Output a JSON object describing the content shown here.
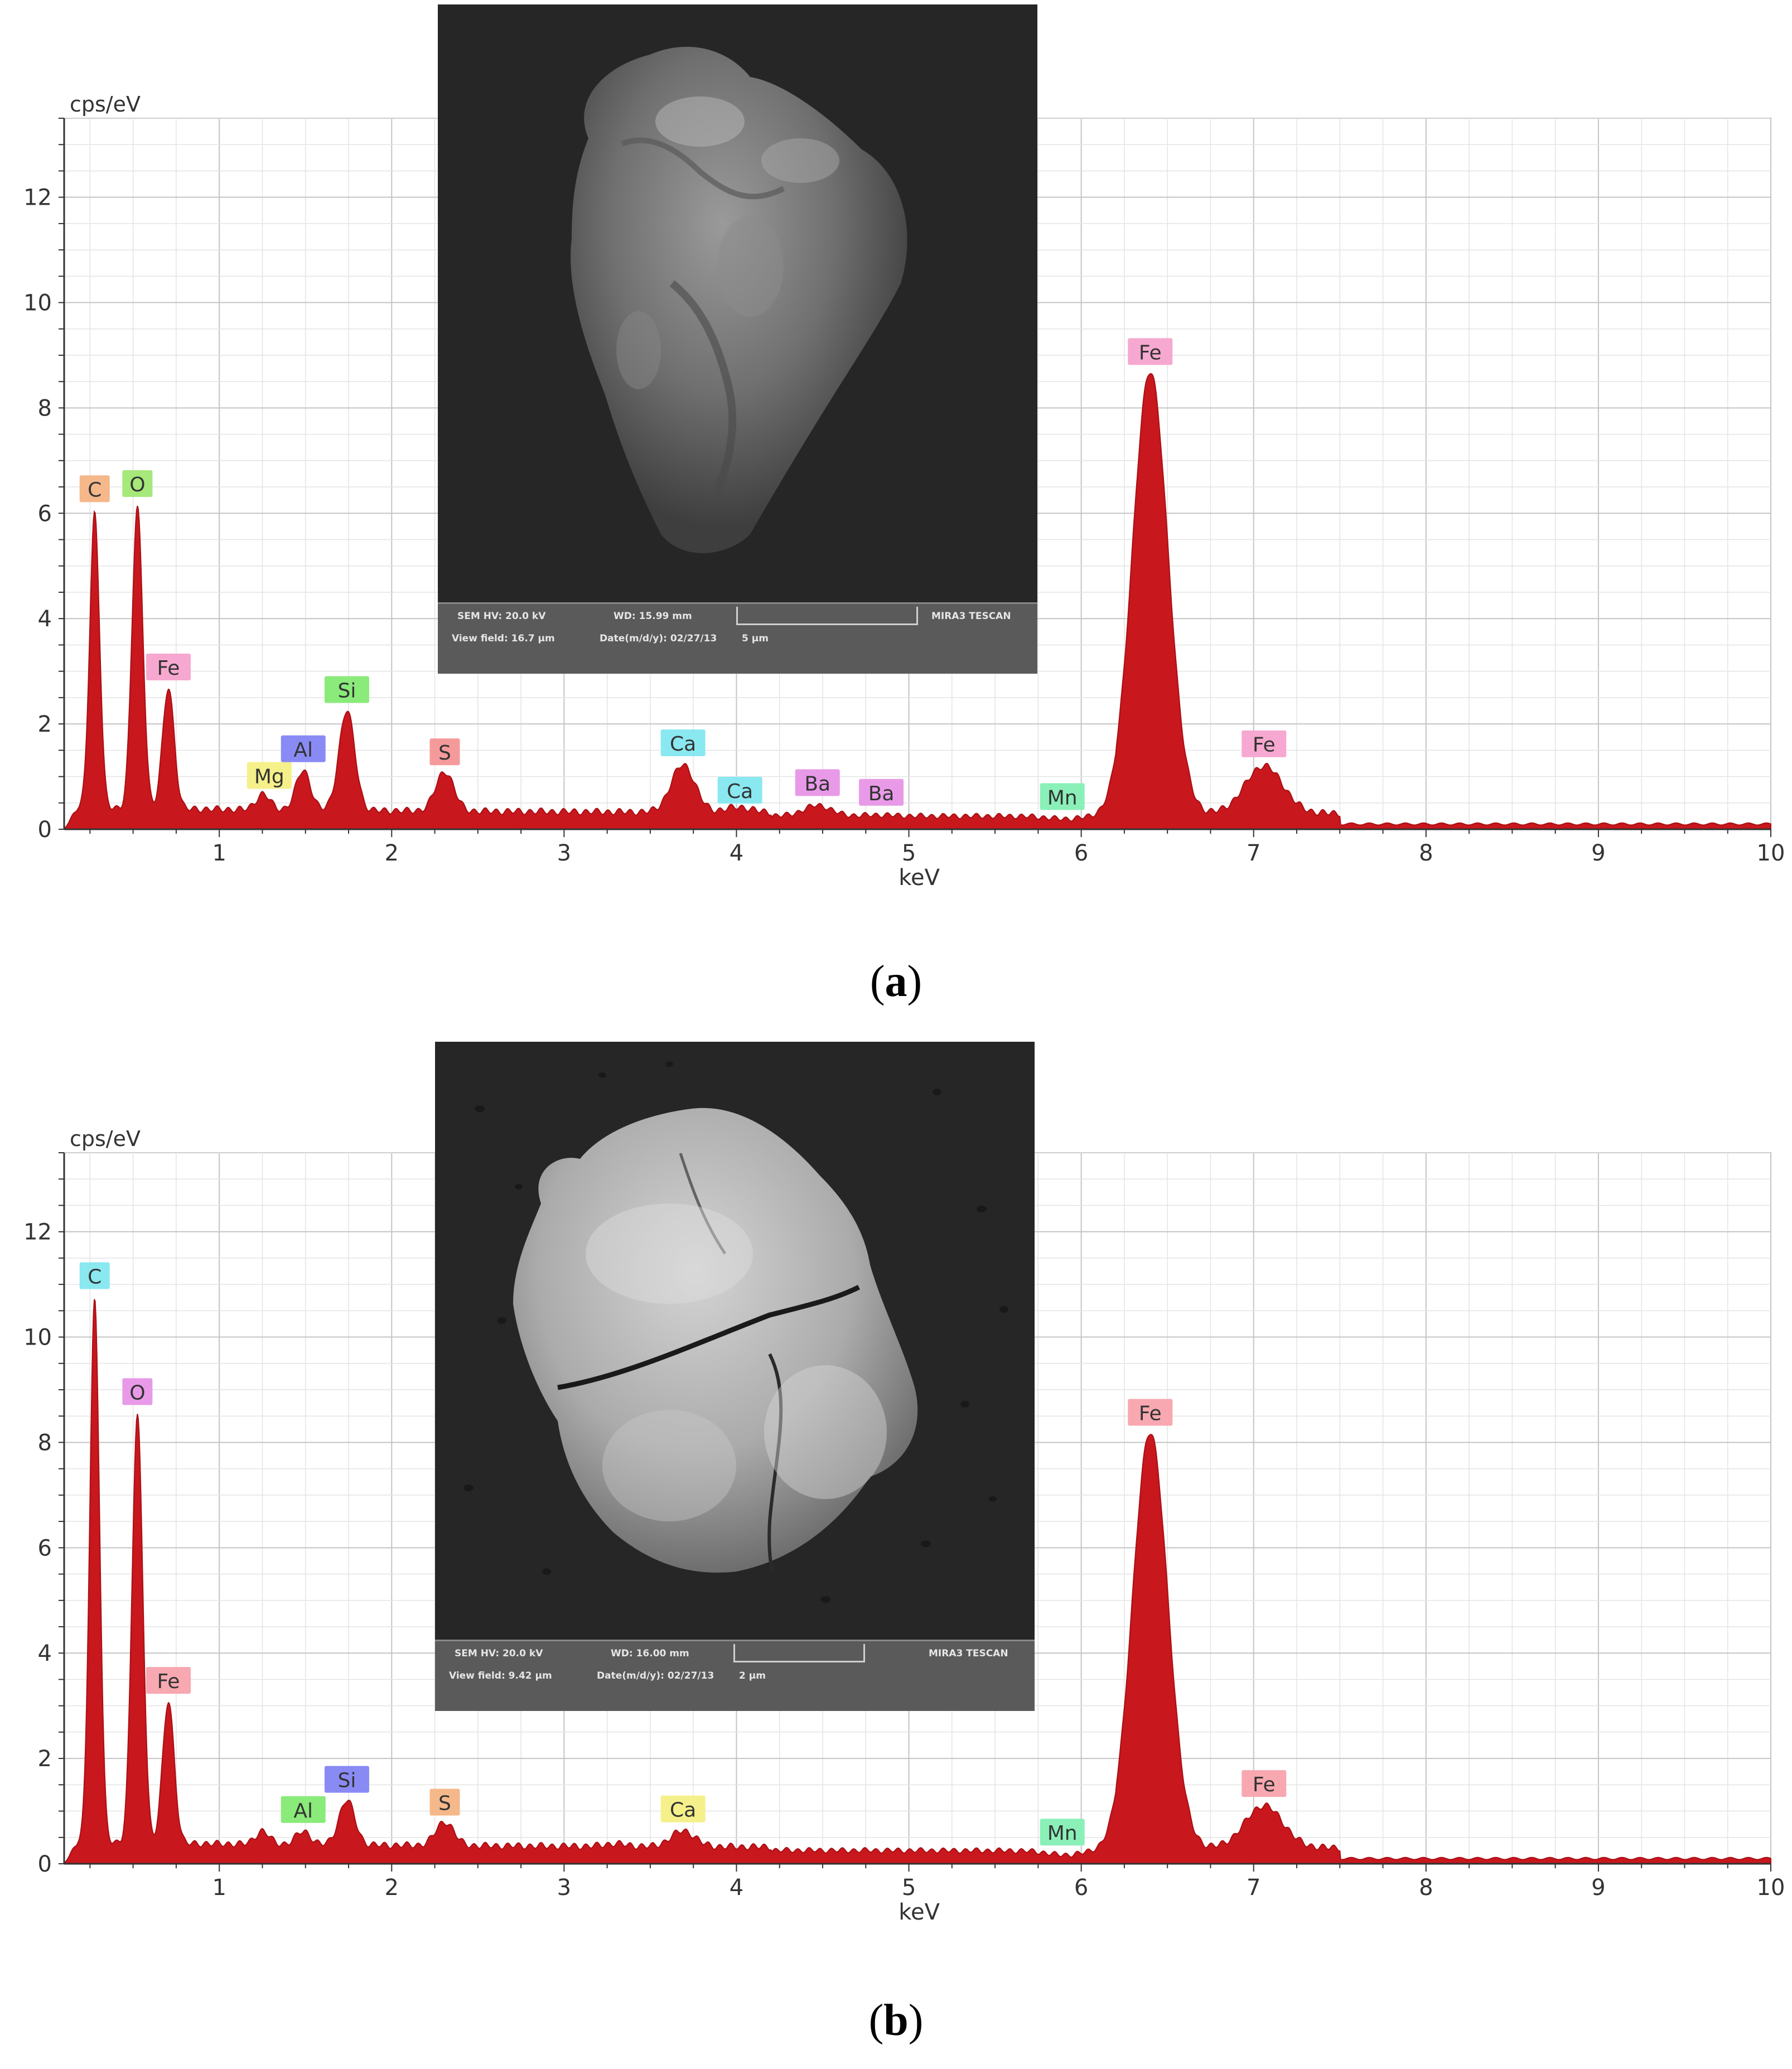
{
  "chart_data": [
    {
      "type": "line",
      "panel_label": "a",
      "ylabel": "cps/eV",
      "xlabel": "keV",
      "xlim": [
        0.1,
        10
      ],
      "ylim": [
        0,
        13.5
      ],
      "x_ticks": [
        1,
        2,
        3,
        4,
        5,
        6,
        7,
        8,
        9,
        10
      ],
      "y_ticks": [
        0,
        2,
        4,
        6,
        8,
        10,
        12
      ],
      "grid": true,
      "fill_color": "#c8171d",
      "baseline": 0.3,
      "peaks": [
        {
          "x": 0.277,
          "y": 5.9,
          "label": "C",
          "label_color": "#f5b88a"
        },
        {
          "x": 0.525,
          "y": 6.0,
          "label": "O",
          "label_color": "#a6e87a"
        },
        {
          "x": 0.705,
          "y": 2.6,
          "label": "Fe",
          "label_color": "#f7a8d0"
        },
        {
          "x": 1.254,
          "y": 0.6,
          "label": "Mg",
          "label_color": "#f5f08a"
        },
        {
          "x": 1.487,
          "y": 1.05,
          "label": "Al",
          "label_color": "#8a8af5"
        },
        {
          "x": 1.74,
          "y": 2.2,
          "label": "Si",
          "label_color": "#8aea7a"
        },
        {
          "x": 2.308,
          "y": 1.05,
          "label": "S",
          "label_color": "#f59a9a"
        },
        {
          "x": 3.69,
          "y": 1.2,
          "label": "Ca",
          "label_color": "#8ae8f0"
        },
        {
          "x": 4.01,
          "y": 0.4,
          "label": "Ca",
          "label_color": "#8ae8f0"
        },
        {
          "x": 4.47,
          "y": 0.5,
          "label": "Ba",
          "label_color": "#e89ae8"
        },
        {
          "x": 4.83,
          "y": 0.32,
          "label": "Ba",
          "label_color": "#e89ae8"
        },
        {
          "x": 5.9,
          "y": 0.25,
          "label": "Mn",
          "label_color": "#8af0b8"
        },
        {
          "x": 6.4,
          "y": 8.7,
          "label": "Fe",
          "label_color": "#f7a8d0"
        },
        {
          "x": 7.06,
          "y": 1.2,
          "label": "Fe",
          "label_color": "#f7a8d0"
        }
      ],
      "inset": {
        "sem_hv": "SEM HV: 20.0 kV",
        "wd": "WD: 15.99 mm",
        "maker": "MIRA3 TESCAN",
        "view_field": "View field: 16.7 µm",
        "date": "Date(m/d/y): 02/27/13",
        "scale": "5 µm"
      }
    },
    {
      "type": "line",
      "panel_label": "b",
      "ylabel": "cps/eV",
      "xlabel": "keV",
      "xlim": [
        0.1,
        10
      ],
      "ylim": [
        0,
        13.5
      ],
      "x_ticks": [
        1,
        2,
        3,
        4,
        5,
        6,
        7,
        8,
        9,
        10
      ],
      "y_ticks": [
        0,
        2,
        4,
        6,
        8,
        10,
        12
      ],
      "grid": true,
      "fill_color": "#c8171d",
      "baseline": 0.3,
      "peaks": [
        {
          "x": 0.277,
          "y": 10.6,
          "label": "C",
          "label_color": "#8ae8f0"
        },
        {
          "x": 0.525,
          "y": 8.4,
          "label": "O",
          "label_color": "#e89ae8"
        },
        {
          "x": 0.705,
          "y": 3.0,
          "label": "Fe",
          "label_color": "#f7a8b0"
        },
        {
          "x": 1.25,
          "y": 0.55,
          "label": "",
          "label_color": ""
        },
        {
          "x": 1.487,
          "y": 0.55,
          "label": "Al",
          "label_color": "#8aea7a"
        },
        {
          "x": 1.74,
          "y": 1.15,
          "label": "Si",
          "label_color": "#8a8af5"
        },
        {
          "x": 2.308,
          "y": 0.75,
          "label": "S",
          "label_color": "#f5b88a"
        },
        {
          "x": 3.3,
          "y": 0.35,
          "label": "",
          "label_color": ""
        },
        {
          "x": 3.69,
          "y": 0.6,
          "label": "Ca",
          "label_color": "#f5f08a"
        },
        {
          "x": 5.9,
          "y": 0.22,
          "label": "Mn",
          "label_color": "#8af0b8"
        },
        {
          "x": 6.4,
          "y": 8.2,
          "label": "Fe",
          "label_color": "#f7a8b0"
        },
        {
          "x": 7.06,
          "y": 1.1,
          "label": "Fe",
          "label_color": "#f7a8b0"
        }
      ],
      "inset": {
        "sem_hv": "SEM HV: 20.0 kV",
        "wd": "WD: 16.00 mm",
        "maker": "MIRA3 TESCAN",
        "view_field": "View field: 9.42 µm",
        "date": "Date(m/d/y): 02/27/13",
        "scale": "2 µm"
      }
    }
  ],
  "captions": {
    "a": "a",
    "b": "b"
  }
}
